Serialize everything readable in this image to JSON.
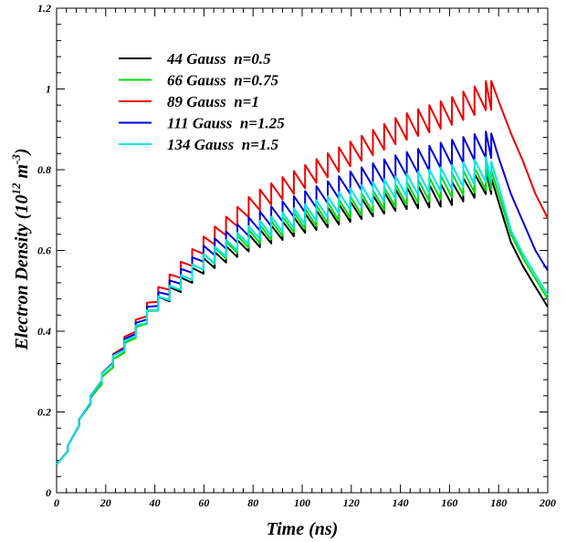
{
  "chart_data": {
    "type": "line",
    "title": "",
    "xlabel": "Time (ns)",
    "ylabel_main": "Electron Density (10",
    "ylabel_sup1": "12",
    "ylabel_mid": " m",
    "ylabel_sup2": "-3",
    "ylabel_end": ")",
    "xlim": [
      0,
      200
    ],
    "ylim": [
      0,
      1.2
    ],
    "x_ticks": [
      0,
      20,
      40,
      60,
      80,
      100,
      120,
      140,
      160,
      180,
      200
    ],
    "y_ticks": [
      0,
      0.2,
      0.4,
      0.6,
      0.8,
      1,
      1.2
    ],
    "x_tick_labels": [
      "0",
      "20",
      "40",
      "60",
      "80",
      "100",
      "120",
      "140",
      "160",
      "180",
      "200"
    ],
    "y_tick_labels": [
      "0",
      "0.2",
      "0.4",
      "0.6",
      "0.8",
      "1",
      "1.2"
    ],
    "grid": false,
    "legend_position": "top-left",
    "pulse_period_ns": 4.6,
    "pulse_end_ns": 177,
    "series": [
      {
        "name": "44 Gauss  n=0.5",
        "color": "#000000",
        "envelope": [
          [
            0,
            0.06
          ],
          [
            2,
            0.07
          ],
          [
            10,
            0.18
          ],
          [
            20,
            0.29
          ],
          [
            40,
            0.45
          ],
          [
            60,
            0.55
          ],
          [
            80,
            0.61
          ],
          [
            100,
            0.65
          ],
          [
            120,
            0.68
          ],
          [
            140,
            0.71
          ],
          [
            160,
            0.72
          ],
          [
            175,
            0.75
          ]
        ],
        "ripple": [
          [
            0,
            0.01
          ],
          [
            20,
            0.015
          ],
          [
            40,
            0.028
          ],
          [
            100,
            0.04
          ],
          [
            175,
            0.05
          ]
        ],
        "decay": [
          [
            177,
            0.78
          ],
          [
            180,
            0.72
          ],
          [
            185,
            0.62
          ],
          [
            190,
            0.56
          ],
          [
            195,
            0.51
          ],
          [
            200,
            0.46
          ]
        ]
      },
      {
        "name": "66 Gauss  n=0.75",
        "color": "#00dd00",
        "envelope": [
          [
            0,
            0.06
          ],
          [
            2,
            0.07
          ],
          [
            10,
            0.18
          ],
          [
            20,
            0.29
          ],
          [
            40,
            0.45
          ],
          [
            60,
            0.56
          ],
          [
            80,
            0.62
          ],
          [
            100,
            0.66
          ],
          [
            120,
            0.69
          ],
          [
            140,
            0.72
          ],
          [
            160,
            0.74
          ],
          [
            175,
            0.76
          ]
        ],
        "ripple": [
          [
            0,
            0.01
          ],
          [
            20,
            0.015
          ],
          [
            40,
            0.028
          ],
          [
            100,
            0.042
          ],
          [
            175,
            0.052
          ]
        ],
        "decay": [
          [
            177,
            0.8
          ],
          [
            180,
            0.74
          ],
          [
            185,
            0.64
          ],
          [
            190,
            0.58
          ],
          [
            195,
            0.53
          ],
          [
            200,
            0.48
          ]
        ]
      },
      {
        "name": "89 Gauss  n=1",
        "color": "#ee0000",
        "envelope": [
          [
            0,
            0.06
          ],
          [
            2,
            0.07
          ],
          [
            10,
            0.18
          ],
          [
            20,
            0.3
          ],
          [
            40,
            0.47
          ],
          [
            60,
            0.6
          ],
          [
            80,
            0.7
          ],
          [
            100,
            0.76
          ],
          [
            120,
            0.82
          ],
          [
            140,
            0.88
          ],
          [
            160,
            0.92
          ],
          [
            175,
            0.96
          ]
        ],
        "ripple": [
          [
            0,
            0.01
          ],
          [
            20,
            0.016
          ],
          [
            40,
            0.03
          ],
          [
            100,
            0.048
          ],
          [
            175,
            0.06
          ]
        ],
        "decay": [
          [
            177,
            1.02
          ],
          [
            180,
            0.97
          ],
          [
            185,
            0.89
          ],
          [
            190,
            0.82
          ],
          [
            195,
            0.74
          ],
          [
            200,
            0.68
          ]
        ]
      },
      {
        "name": "111 Gauss  n=1.25",
        "color": "#0000dd",
        "envelope": [
          [
            0,
            0.06
          ],
          [
            2,
            0.07
          ],
          [
            10,
            0.18
          ],
          [
            20,
            0.3
          ],
          [
            40,
            0.46
          ],
          [
            60,
            0.58
          ],
          [
            80,
            0.65
          ],
          [
            100,
            0.7
          ],
          [
            120,
            0.75
          ],
          [
            140,
            0.79
          ],
          [
            160,
            0.82
          ],
          [
            175,
            0.84
          ]
        ],
        "ripple": [
          [
            0,
            0.01
          ],
          [
            20,
            0.015
          ],
          [
            40,
            0.028
          ],
          [
            100,
            0.044
          ],
          [
            175,
            0.055
          ]
        ],
        "decay": [
          [
            177,
            0.89
          ],
          [
            180,
            0.83
          ],
          [
            185,
            0.74
          ],
          [
            190,
            0.67
          ],
          [
            195,
            0.6
          ],
          [
            200,
            0.55
          ]
        ]
      },
      {
        "name": "134 Gauss  n=1.5",
        "color": "#00e5e5",
        "envelope": [
          [
            0,
            0.06
          ],
          [
            2,
            0.07
          ],
          [
            10,
            0.18
          ],
          [
            20,
            0.3
          ],
          [
            40,
            0.45
          ],
          [
            60,
            0.56
          ],
          [
            80,
            0.63
          ],
          [
            100,
            0.67
          ],
          [
            120,
            0.71
          ],
          [
            140,
            0.74
          ],
          [
            160,
            0.76
          ],
          [
            175,
            0.78
          ]
        ],
        "ripple": [
          [
            0,
            0.01
          ],
          [
            20,
            0.015
          ],
          [
            40,
            0.028
          ],
          [
            100,
            0.042
          ],
          [
            175,
            0.052
          ]
        ],
        "decay": [
          [
            177,
            0.82
          ],
          [
            180,
            0.76
          ],
          [
            185,
            0.65
          ],
          [
            190,
            0.59
          ],
          [
            195,
            0.54
          ],
          [
            200,
            0.49
          ]
        ]
      }
    ]
  }
}
